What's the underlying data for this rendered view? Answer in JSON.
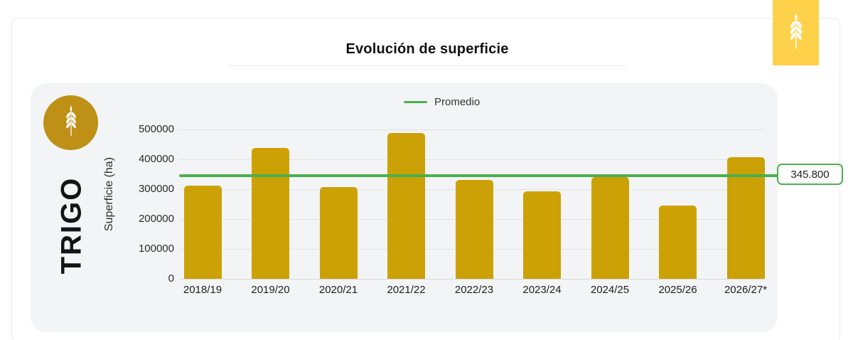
{
  "page": {
    "title": "Evolución de superficie",
    "crop_label": "TRIGO"
  },
  "legend": {
    "promedio_label": "Promedio"
  },
  "colors": {
    "bar_gold": "#CCA105",
    "badge_circle_gold": "#BE9016",
    "brand_square_yellow": "#FDD24A",
    "average_green": "#4CAF50",
    "card_background": "#F3F4F6"
  },
  "chart_data": {
    "type": "bar",
    "title": "Evolución de superficie",
    "xlabel": "",
    "ylabel": "Superficie (ha)",
    "categories": [
      "2018/19",
      "2019/20",
      "2020/21",
      "2021/22",
      "2022/23",
      "2023/24",
      "2024/25",
      "2025/26",
      "2026/27*"
    ],
    "values": [
      313000,
      438000,
      307000,
      488000,
      332000,
      294000,
      340000,
      245000,
      407000
    ],
    "yticks": [
      0,
      100000,
      200000,
      300000,
      400000,
      500000
    ],
    "ytick_labels": [
      "0",
      "100000",
      "200000",
      "300000",
      "400000",
      "500000"
    ],
    "ylim": [
      0,
      520000
    ],
    "grid": true,
    "legend_position": "top",
    "legend": [
      {
        "label": "Promedio",
        "color": "#4CAF50",
        "style": "line"
      }
    ],
    "average_line": {
      "value": 345800,
      "display": "345.800",
      "color": "#4CAF50"
    },
    "bar_color": "#CCA105"
  }
}
